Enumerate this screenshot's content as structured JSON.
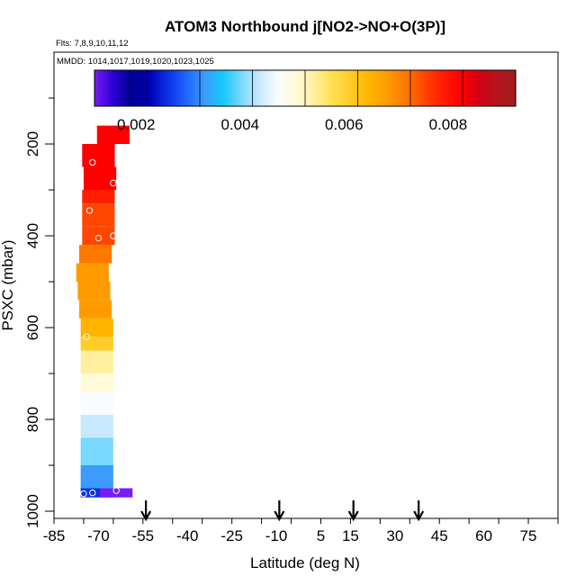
{
  "chart_data": {
    "type": "heatmap",
    "title": "ATOM3 Northbound j[NO2->NO+O(3P)]",
    "subtitle_flights": "Flts: 7,8,9,10,11,12",
    "subtitle_dates": "MMDD: 1014,1017,1019,1020,1023,1025",
    "xlabel": "Latitude (deg N)",
    "ylabel": "PSXC (mbar)",
    "xlim": [
      -85,
      85
    ],
    "ylim": [
      1000,
      0
    ],
    "x_ticks": [
      -85,
      -70,
      -55,
      -40,
      -25,
      -10,
      5,
      15,
      30,
      45,
      60,
      75
    ],
    "x_tick_labels": [
      "-85",
      "-70",
      "-55",
      "-40",
      "-25",
      "-10",
      "5",
      "15",
      "30",
      "45",
      "60",
      "75"
    ],
    "y_ticks": [
      200,
      400,
      600,
      800,
      1000
    ],
    "y_tick_labels": [
      "200",
      "400",
      "600",
      "800",
      "1000"
    ],
    "colorbar": {
      "ticks": [
        0.002,
        0.004,
        0.006,
        0.008
      ],
      "tick_labels": [
        "0.002",
        "0.004",
        "0.006",
        "0.008"
      ],
      "range": [
        0.0012,
        0.0093
      ],
      "colors": [
        "#7a1cf0",
        "#2a00d8",
        "#00008c",
        "#0000b4",
        "#0a32e6",
        "#1e64ff",
        "#3c9bff",
        "#14c8ff",
        "#78d8ff",
        "#c8e8ff",
        "#f8fcff",
        "#fffad8",
        "#fff0a0",
        "#ffe050",
        "#ffcc28",
        "#ffb400",
        "#ff9b00",
        "#ff7800",
        "#ff4600",
        "#ff1e00",
        "#ff0000",
        "#d20014",
        "#b4141e",
        "#a01e1e"
      ]
    },
    "arrows_x": [
      -54,
      -9,
      16,
      38
    ],
    "cells": [
      {
        "lat": -65,
        "p0": 160,
        "p1": 200,
        "value": 0.0082
      },
      {
        "lat": -70,
        "p0": 200,
        "p1": 250,
        "value": 0.008
      },
      {
        "lat": -69.5,
        "p0": 250,
        "p1": 300,
        "value": 0.008
      },
      {
        "lat": -70,
        "p0": 300,
        "p1": 330,
        "value": 0.0078
      },
      {
        "lat": -70,
        "p0": 330,
        "p1": 380,
        "value": 0.0076
      },
      {
        "lat": -70,
        "p0": 380,
        "p1": 420,
        "value": 0.0073
      },
      {
        "lat": -71,
        "p0": 420,
        "p1": 460,
        "value": 0.007
      },
      {
        "lat": -72,
        "p0": 460,
        "p1": 500,
        "value": 0.0068
      },
      {
        "lat": -71.5,
        "p0": 500,
        "p1": 540,
        "value": 0.0067
      },
      {
        "lat": -71,
        "p0": 540,
        "p1": 580,
        "value": 0.0066
      },
      {
        "lat": -70.5,
        "p0": 580,
        "p1": 620,
        "value": 0.0063
      },
      {
        "lat": -70.5,
        "p0": 620,
        "p1": 650,
        "value": 0.0061
      },
      {
        "lat": -70.5,
        "p0": 650,
        "p1": 700,
        "value": 0.0055
      },
      {
        "lat": -70.5,
        "p0": 700,
        "p1": 740,
        "value": 0.0052
      },
      {
        "lat": -70.5,
        "p0": 740,
        "p1": 790,
        "value": 0.0048
      },
      {
        "lat": -70.5,
        "p0": 790,
        "p1": 840,
        "value": 0.0044
      },
      {
        "lat": -70.5,
        "p0": 840,
        "p1": 900,
        "value": 0.004
      },
      {
        "lat": -70.5,
        "p0": 900,
        "p1": 950,
        "value": 0.0033
      },
      {
        "lat": -70.5,
        "p0": 950,
        "p1": 970,
        "value": 0.0026
      },
      {
        "lat": -64,
        "p0": 950,
        "p1": 970,
        "value": 0.0012
      }
    ],
    "markers": [
      {
        "lat": -72,
        "p": 240
      },
      {
        "lat": -65,
        "p": 285
      },
      {
        "lat": -73,
        "p": 345
      },
      {
        "lat": -65,
        "p": 400
      },
      {
        "lat": -70,
        "p": 405
      },
      {
        "lat": -74,
        "p": 620
      },
      {
        "lat": -72,
        "p": 960
      },
      {
        "lat": -75,
        "p": 962
      },
      {
        "lat": -64,
        "p": 955
      }
    ]
  }
}
